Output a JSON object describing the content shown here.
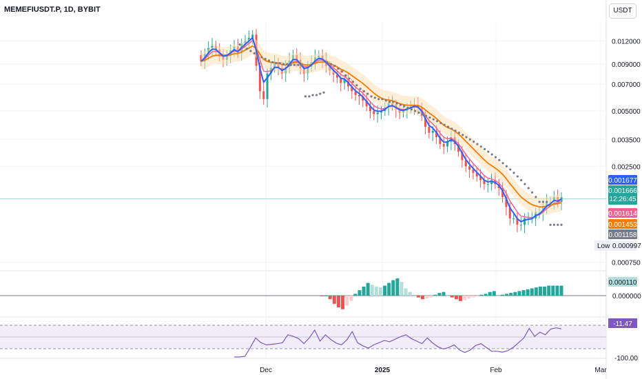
{
  "title": "MEMEFIUSDT.P, 1D, BYBIT",
  "currency": "USDT",
  "price_scale": [
    "0.012000",
    "0.009000",
    "0.007000",
    "0.005000",
    "0.003500",
    "0.002500",
    "0.000750"
  ],
  "price_tags": {
    "blue": "0.001677",
    "last_price": "0.001666",
    "countdown": "12:26:45",
    "pink": "0.001614",
    "orange": "0.001453",
    "gray": "0.001158",
    "low_label": "Low",
    "low_value": "0.000997"
  },
  "macd_tags": {
    "value": "0.000110",
    "zero": "0.000000"
  },
  "rsi_tags": {
    "value": "-11.47",
    "min": "-100.00"
  },
  "x_labels": [
    "Dec",
    "2025",
    "Feb",
    "Mar"
  ],
  "colors": {
    "up": "#26a69a",
    "down": "#ef5350",
    "candle_up": "#c3e3df",
    "candle_down": "#f6c4c9",
    "blue_line": "#2962ff",
    "orange_line": "#f57c00",
    "pink_line": "#f06292",
    "sar": "#787b86",
    "macd_up_strong": "#26a69a",
    "macd_up_weak": "#b2dfdb",
    "macd_down_strong": "#ef5350",
    "macd_down_weak": "#ffcdd2",
    "rsi": "#7e57c2"
  },
  "chart_data": {
    "type": "candlestick",
    "symbol": "MEMEFIUSDT.P",
    "interval": "1D",
    "exchange": "BYBIT",
    "y_scale": "log",
    "ylim": [
      0.00068,
      0.0155
    ],
    "close": [
      0.0093,
      0.0102,
      0.011,
      0.0113,
      0.0108,
      0.0099,
      0.0095,
      0.0101,
      0.0107,
      0.0112,
      0.0103,
      0.0116,
      0.012,
      0.0125,
      0.013,
      0.0088,
      0.0064,
      0.0058,
      0.008,
      0.0086,
      0.0092,
      0.0086,
      0.008,
      0.0087,
      0.0094,
      0.0101,
      0.0095,
      0.0085,
      0.008,
      0.0087,
      0.0092,
      0.0098,
      0.01,
      0.0095,
      0.0088,
      0.0083,
      0.0079,
      0.0076,
      0.0071,
      0.0074,
      0.0068,
      0.0064,
      0.0061,
      0.006,
      0.0057,
      0.0053,
      0.005,
      0.0048,
      0.0049,
      0.005,
      0.0052,
      0.0055,
      0.0054,
      0.0051,
      0.0049,
      0.005,
      0.0052,
      0.0053,
      0.0054,
      0.0052,
      0.0047,
      0.0041,
      0.0038,
      0.0039,
      0.0036,
      0.0033,
      0.0032,
      0.0034,
      0.0036,
      0.0033,
      0.003,
      0.0027,
      0.0025,
      0.0024,
      0.0023,
      0.0022,
      0.0021,
      0.002,
      0.002,
      0.0021,
      0.002,
      0.0019,
      0.0017,
      0.0015,
      0.0013,
      0.0013,
      0.0012,
      0.0012,
      0.0013,
      0.0013,
      0.0013,
      0.0014,
      0.0014,
      0.0015,
      0.0016,
      0.0016,
      0.0017,
      0.0016,
      0.0017
    ],
    "sar": [
      0.0115,
      0.0112,
      0.0109,
      0.0106,
      0.0103,
      0.01,
      0.0098,
      0.0096,
      0.0094,
      0.0092,
      0.0091,
      0.0091,
      0.009,
      0.009,
      0.0089,
      0.0089,
      0.0089,
      0.0089,
      0.006,
      0.006,
      0.0061,
      0.0061,
      0.0062,
      0.0063,
      0.0092,
      0.009,
      0.0088,
      0.0085,
      0.0082,
      0.0078,
      0.0075,
      0.0072,
      0.0069,
      0.0066,
      0.0064,
      0.0062,
      0.006,
      0.0059,
      0.0058,
      0.0058,
      0.0057,
      0.0056,
      0.0056,
      0.0055,
      0.0054,
      0.0053,
      0.0052,
      0.0051,
      0.005,
      0.0049,
      0.0048,
      0.0047,
      0.0046,
      0.0045,
      0.0044,
      0.0043,
      0.0042,
      0.0041,
      0.004,
      0.0039,
      0.0038,
      0.0037,
      0.0036,
      0.0035,
      0.0034,
      0.0033,
      0.0032,
      0.0031,
      0.003,
      0.0029,
      0.0028,
      0.0027,
      0.0026,
      0.0025,
      0.0024,
      0.0023,
      0.0022,
      0.0021,
      0.002,
      0.0019,
      0.0018,
      0.0017,
      0.0016,
      0.0016,
      0.0016,
      0.0012,
      0.0012,
      0.0012,
      0.0012
    ],
    "macd_histogram": [
      0,
      0,
      -4e-05,
      -9e-05,
      -0.00013,
      -0.00015,
      -0.00011,
      -6e-05,
      2e-05,
      6e-05,
      0.0001,
      0.00014,
      0.00012,
      0.0001,
      9e-05,
      0.00011,
      0.00014,
      0.00017,
      0.00019,
      0.00015,
      8e-05,
      4e-05,
      0,
      -2e-05,
      -4e-05,
      -3e-05,
      -2e-05,
      1e-05,
      3e-05,
      4e-05,
      0,
      -2e-05,
      -4e-05,
      -6e-05,
      -5e-05,
      -3e-05,
      -2e-05,
      -1e-05,
      1e-05,
      2e-05,
      4e-05,
      5e-05,
      0,
      1e-05,
      2e-05,
      3e-05,
      4e-05,
      5e-05,
      6e-05,
      7e-05,
      8e-05,
      9e-05,
      0.0001,
      0.0001,
      0.00011,
      0.00011,
      0.00011,
      0.00011
    ],
    "rsi": [
      -100,
      -100,
      -98,
      -70,
      -40,
      -55,
      -62,
      -60,
      -58,
      -55,
      -30,
      -35,
      -42,
      -58,
      -40,
      -15,
      -50,
      -30,
      -45,
      -56,
      -62,
      -46,
      -20,
      -55,
      -65,
      -72,
      -62,
      -55,
      -48,
      -52,
      -44,
      -36,
      -30,
      -42,
      -50,
      -58,
      -40,
      -56,
      -68,
      -75,
      -70,
      -62,
      -78,
      -86,
      -78,
      -64,
      -58,
      -70,
      -82,
      -82,
      -85,
      -80,
      -70,
      -55,
      -40,
      -10,
      -35,
      -22,
      -30,
      -12,
      -8,
      -11.47
    ],
    "high_low_label": {
      "low": 0.000997
    }
  }
}
